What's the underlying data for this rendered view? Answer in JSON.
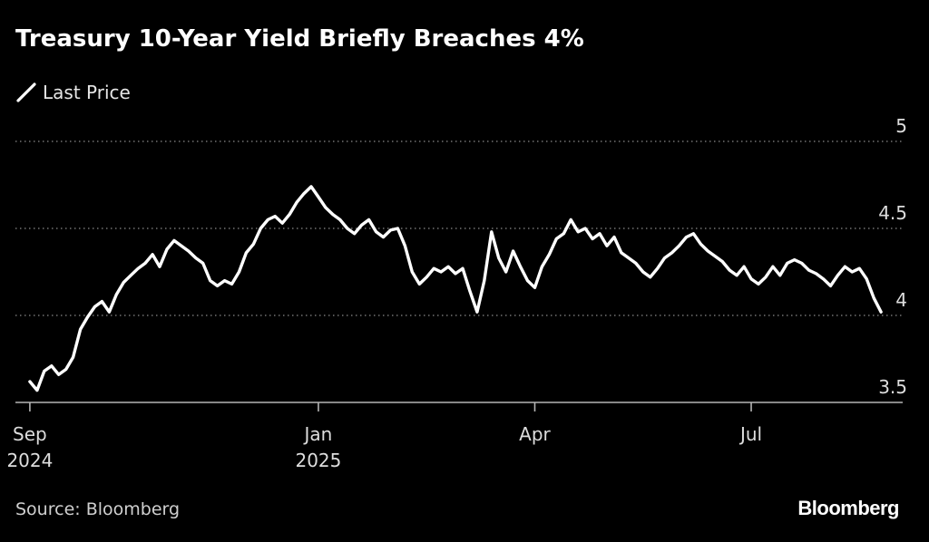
{
  "title": "Treasury 10-Year Yield Briefly Breaches 4%",
  "legend": {
    "label": "Last Price",
    "icon": "diagonal-line-icon"
  },
  "source": "Source: Bloomberg",
  "brand": "Bloomberg",
  "colors": {
    "background": "#000000",
    "line": "#ffffff",
    "grid": "#8a8a8a",
    "axis": "#b5b5b5",
    "text": "#dddddd"
  },
  "chart_data": {
    "type": "line",
    "title": "Treasury 10-Year Yield Briefly Breaches 4%",
    "xlabel": "",
    "ylabel": "",
    "ylim": [
      3.5,
      5.0
    ],
    "xlim": [
      -0.2,
      12.1
    ],
    "grid": true,
    "legend_position": "top-left",
    "y_ticks": [
      {
        "value": 3.5,
        "label": "3.5"
      },
      {
        "value": 4.0,
        "label": "4"
      },
      {
        "value": 4.5,
        "label": "4.5"
      },
      {
        "value": 5.0,
        "label": "5"
      }
    ],
    "x_ticks": [
      {
        "value": 0,
        "label": "Sep",
        "sublabel": "2024"
      },
      {
        "value": 4,
        "label": "Jan",
        "sublabel": "2025"
      },
      {
        "value": 7,
        "label": "Apr",
        "sublabel": ""
      },
      {
        "value": 10,
        "label": "Jul",
        "sublabel": ""
      }
    ],
    "series": [
      {
        "name": "Last Price",
        "x": [
          0.0,
          0.1,
          0.2,
          0.3,
          0.4,
          0.5,
          0.6,
          0.7,
          0.8,
          0.9,
          1.0,
          1.1,
          1.2,
          1.3,
          1.4,
          1.5,
          1.6,
          1.7,
          1.8,
          1.9,
          2.0,
          2.1,
          2.2,
          2.3,
          2.4,
          2.5,
          2.6,
          2.7,
          2.8,
          2.9,
          3.0,
          3.1,
          3.2,
          3.3,
          3.4,
          3.5,
          3.6,
          3.7,
          3.8,
          3.9,
          4.0,
          4.1,
          4.2,
          4.3,
          4.4,
          4.5,
          4.6,
          4.7,
          4.8,
          4.9,
          5.0,
          5.1,
          5.2,
          5.3,
          5.4,
          5.5,
          5.6,
          5.7,
          5.8,
          5.9,
          6.0,
          6.1,
          6.2,
          6.3,
          6.4,
          6.5,
          6.6,
          6.7,
          6.8,
          6.9,
          7.0,
          7.1,
          7.2,
          7.3,
          7.4,
          7.5,
          7.6,
          7.7,
          7.8,
          7.9,
          8.0,
          8.1,
          8.2,
          8.3,
          8.4,
          8.5,
          8.6,
          8.7,
          8.8,
          8.9,
          9.0,
          9.1,
          9.2,
          9.3,
          9.4,
          9.5,
          9.6,
          9.7,
          9.8,
          9.9,
          10.0,
          10.1,
          10.2,
          10.3,
          10.4,
          10.5,
          10.6,
          10.7,
          10.8,
          10.9,
          11.0,
          11.1,
          11.2,
          11.3,
          11.4,
          11.5,
          11.6,
          11.7,
          11.8
        ],
        "values": [
          3.62,
          3.57,
          3.68,
          3.71,
          3.66,
          3.69,
          3.76,
          3.92,
          3.99,
          4.05,
          4.08,
          4.02,
          4.12,
          4.19,
          4.23,
          4.27,
          4.3,
          4.35,
          4.28,
          4.38,
          4.43,
          4.4,
          4.37,
          4.33,
          4.3,
          4.2,
          4.17,
          4.2,
          4.18,
          4.25,
          4.36,
          4.41,
          4.5,
          4.55,
          4.57,
          4.53,
          4.58,
          4.65,
          4.7,
          4.74,
          4.68,
          4.62,
          4.58,
          4.55,
          4.5,
          4.47,
          4.52,
          4.55,
          4.48,
          4.45,
          4.49,
          4.5,
          4.4,
          4.25,
          4.18,
          4.22,
          4.27,
          4.25,
          4.28,
          4.24,
          4.27,
          4.14,
          4.02,
          4.2,
          4.48,
          4.33,
          4.25,
          4.37,
          4.28,
          4.2,
          4.16,
          4.28,
          4.35,
          4.44,
          4.47,
          4.55,
          4.48,
          4.5,
          4.44,
          4.47,
          4.4,
          4.45,
          4.36,
          4.33,
          4.3,
          4.25,
          4.22,
          4.27,
          4.33,
          4.36,
          4.4,
          4.45,
          4.47,
          4.41,
          4.37,
          4.34,
          4.31,
          4.26,
          4.23,
          4.28,
          4.21,
          4.18,
          4.22,
          4.28,
          4.23,
          4.3,
          4.32,
          4.3,
          4.26,
          4.24,
          4.21,
          4.17,
          4.23,
          4.28,
          4.25,
          4.27,
          4.21,
          4.1,
          4.02
        ]
      }
    ]
  }
}
